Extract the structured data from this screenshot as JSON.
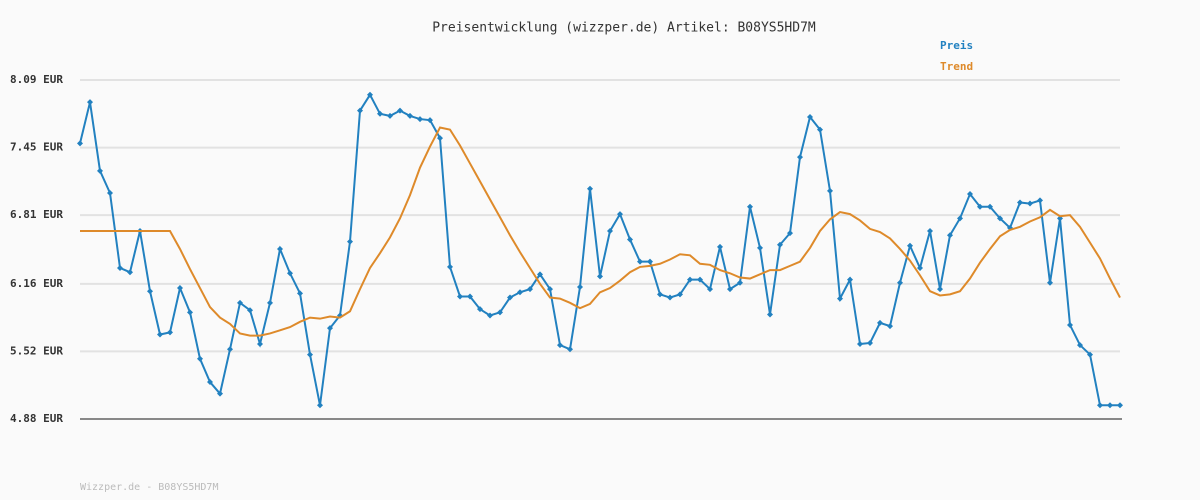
{
  "chart_data": {
    "type": "line",
    "title": "Preisentwicklung (wizzper.de) Artikel: B08YS5HD7M",
    "footer": "Wizzper.de - B08YS5HD7M",
    "categories": [
      null,
      null,
      null,
      null,
      null,
      null,
      null,
      null,
      null,
      null,
      null,
      null,
      null,
      null,
      null,
      null,
      null,
      null,
      null,
      null,
      null,
      null,
      null,
      null,
      null,
      null,
      null,
      null,
      null,
      null,
      null,
      null,
      null,
      null,
      null,
      null,
      null,
      null,
      null,
      null,
      null,
      null,
      null,
      null,
      null,
      null,
      null,
      null,
      null,
      null,
      null,
      null,
      null,
      null,
      null,
      null,
      null,
      null,
      null,
      null,
      null,
      null,
      null,
      null,
      null,
      null,
      null,
      null,
      null,
      null,
      null,
      null,
      null,
      null,
      null,
      null,
      null,
      null,
      null,
      null,
      null,
      null,
      null,
      null,
      null,
      null,
      null,
      null,
      null,
      null,
      null,
      null,
      null,
      null,
      null,
      null,
      null,
      null,
      null,
      null,
      null,
      null,
      null,
      null,
      null
    ],
    "series": [
      {
        "name": "Preis",
        "color": "#2281c0",
        "markers": true,
        "values": [
          7.49,
          7.88,
          7.23,
          7.02,
          6.31,
          6.27,
          6.66,
          6.09,
          5.68,
          5.7,
          6.12,
          5.89,
          5.45,
          5.23,
          5.12,
          5.54,
          5.98,
          5.91,
          5.59,
          5.98,
          6.49,
          6.26,
          6.07,
          5.49,
          5.01,
          5.74,
          5.86,
          6.56,
          7.8,
          7.95,
          7.77,
          7.75,
          7.8,
          7.75,
          7.72,
          7.71,
          7.54,
          6.32,
          6.04,
          6.04,
          5.92,
          5.86,
          5.89,
          6.03,
          6.08,
          6.11,
          6.25,
          6.11,
          5.58,
          5.54,
          6.13,
          7.06,
          6.23,
          6.66,
          6.82,
          6.58,
          6.37,
          6.37,
          6.06,
          6.03,
          6.06,
          6.2,
          6.2,
          6.11,
          6.51,
          6.11,
          6.17,
          6.89,
          6.5,
          5.87,
          6.53,
          6.64,
          7.36,
          7.74,
          7.62,
          7.04,
          6.02,
          6.2,
          5.59,
          5.6,
          5.79,
          5.76,
          6.17,
          6.52,
          6.31,
          6.66,
          6.11,
          6.62,
          6.78,
          7.01,
          6.89,
          6.89,
          6.78,
          6.69,
          6.93,
          6.92,
          6.95,
          6.17,
          6.78,
          5.77,
          5.58,
          5.49,
          5.01,
          5.01,
          5.01
        ]
      },
      {
        "name": "Trend",
        "color": "#de8a2a",
        "markers": false,
        "values": [
          6.66,
          6.66,
          6.66,
          6.66,
          6.66,
          6.66,
          6.66,
          6.66,
          6.66,
          6.66,
          6.49,
          6.3,
          6.12,
          5.94,
          5.84,
          5.78,
          5.69,
          5.67,
          5.67,
          5.69,
          5.72,
          5.75,
          5.8,
          5.84,
          5.83,
          5.85,
          5.84,
          5.9,
          6.11,
          6.31,
          6.45,
          6.6,
          6.78,
          7.0,
          7.26,
          7.46,
          7.64,
          7.62,
          7.47,
          7.3,
          7.13,
          6.96,
          6.79,
          6.62,
          6.46,
          6.31,
          6.16,
          6.03,
          6.02,
          5.98,
          5.93,
          5.97,
          6.08,
          6.12,
          6.19,
          6.27,
          6.32,
          6.33,
          6.35,
          6.39,
          6.44,
          6.43,
          6.35,
          6.34,
          6.29,
          6.26,
          6.22,
          6.21,
          6.25,
          6.29,
          6.29,
          6.33,
          6.37,
          6.5,
          6.66,
          6.77,
          6.84,
          6.82,
          6.76,
          6.68,
          6.65,
          6.59,
          6.49,
          6.38,
          6.24,
          6.09,
          6.05,
          6.06,
          6.09,
          6.21,
          6.36,
          6.49,
          6.61,
          6.67,
          6.7,
          6.75,
          6.79,
          6.86,
          6.8,
          6.81,
          6.7,
          6.55,
          6.4,
          6.21,
          6.03
        ]
      }
    ],
    "ylim": [
      4.88,
      8.09
    ],
    "yticks": [
      {
        "value": 4.88,
        "label": "4.88 EUR"
      },
      {
        "value": 5.52,
        "label": "5.52 EUR"
      },
      {
        "value": 6.16,
        "label": "6.16 EUR"
      },
      {
        "value": 6.81,
        "label": "6.81 EUR"
      },
      {
        "value": 7.45,
        "label": "7.45 EUR"
      },
      {
        "value": 8.09,
        "label": "8.09 EUR"
      }
    ],
    "grid": true
  }
}
